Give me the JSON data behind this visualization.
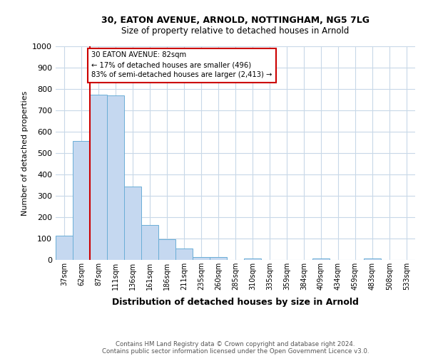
{
  "title1": "30, EATON AVENUE, ARNOLD, NOTTINGHAM, NG5 7LG",
  "title2": "Size of property relative to detached houses in Arnold",
  "xlabel": "Distribution of detached houses by size in Arnold",
  "ylabel": "Number of detached properties",
  "categories": [
    "37sqm",
    "62sqm",
    "87sqm",
    "111sqm",
    "136sqm",
    "161sqm",
    "186sqm",
    "211sqm",
    "235sqm",
    "260sqm",
    "285sqm",
    "310sqm",
    "335sqm",
    "359sqm",
    "384sqm",
    "409sqm",
    "434sqm",
    "459sqm",
    "483sqm",
    "508sqm",
    "533sqm"
  ],
  "values": [
    112,
    557,
    775,
    770,
    345,
    165,
    97,
    53,
    15,
    13,
    0,
    8,
    0,
    0,
    0,
    7,
    0,
    0,
    8,
    0,
    0
  ],
  "bar_color": "#c5d8f0",
  "bar_edge_color": "#6baed6",
  "red_line_x": 2.0,
  "annotation_text": "30 EATON AVENUE: 82sqm\n← 17% of detached houses are smaller (496)\n83% of semi-detached houses are larger (2,413) →",
  "annotation_box_color": "#ffffff",
  "annotation_box_edge_color": "#cc0000",
  "red_line_color": "#cc0000",
  "ylim": [
    0,
    1000
  ],
  "yticks": [
    0,
    100,
    200,
    300,
    400,
    500,
    600,
    700,
    800,
    900,
    1000
  ],
  "footer1": "Contains HM Land Registry data © Crown copyright and database right 2024.",
  "footer2": "Contains public sector information licensed under the Open Government Licence v3.0.",
  "bg_color": "#ffffff",
  "grid_color": "#c8d8e8"
}
